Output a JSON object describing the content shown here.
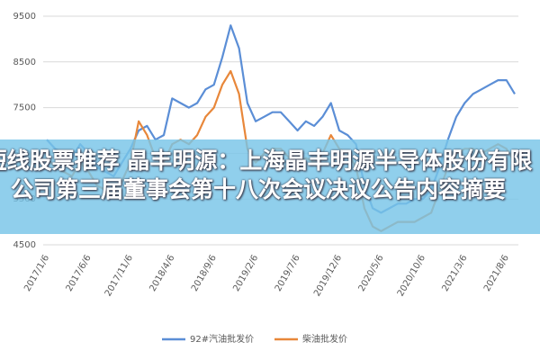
{
  "chart_data": {
    "type": "line",
    "categories": [
      "2017/1/6",
      null,
      null,
      null,
      null,
      "2017/6/6",
      null,
      null,
      null,
      null,
      "2017/11/6",
      null,
      null,
      null,
      null,
      "2018/4/6",
      null,
      null,
      null,
      null,
      "2018/9/6",
      null,
      null,
      null,
      null,
      "2019/2/6",
      null,
      null,
      null,
      null,
      "2019/7/6",
      null,
      null,
      null,
      null,
      "2019/12/6",
      null,
      null,
      null,
      null,
      "2020/5/6",
      null,
      null,
      null,
      null,
      "2020/10/6",
      null,
      null,
      null,
      null,
      "2021/3/6",
      null,
      null,
      null,
      null,
      "2021/8/6",
      null
    ],
    "series": [
      {
        "name": "92#汽油批发价",
        "color": "#5b8ed6",
        "values": [
          6800,
          6600,
          6500,
          6400,
          6700,
          6500,
          6200,
          6100,
          6000,
          6300,
          6600,
          7000,
          7100,
          6800,
          6900,
          7700,
          7600,
          7500,
          7600,
          7900,
          8000,
          8600,
          9300,
          8800,
          7600,
          7200,
          7300,
          7400,
          7400,
          7200,
          7000,
          7200,
          7100,
          7300,
          7600,
          7000,
          6900,
          6700,
          5800,
          5300,
          5200,
          5300,
          5400,
          5400,
          5500,
          5500,
          5700,
          6200,
          6800,
          7300,
          7600,
          7800,
          7900,
          8000,
          8100,
          8100,
          7800
        ]
      },
      {
        "name": "柴油批发价",
        "color": "#e8873a",
        "values": [
          6400,
          6200,
          6100,
          6000,
          6300,
          6100,
          5800,
          5700,
          5600,
          5900,
          6300,
          7200,
          6900,
          6400,
          6300,
          6700,
          6800,
          6700,
          6900,
          7300,
          7500,
          8000,
          8300,
          7800,
          6600,
          6300,
          6500,
          6600,
          6600,
          6400,
          6300,
          6400,
          6300,
          6500,
          6900,
          6600,
          6500,
          6200,
          5300,
          4900,
          4800,
          4900,
          5000,
          5000,
          5000,
          5100,
          5200,
          5700,
          6200,
          6500,
          6600,
          6600,
          6500,
          6600,
          6700,
          6600,
          6300
        ]
      }
    ],
    "ylim": [
      4500,
      9500
    ],
    "yticks": [
      4500,
      5500,
      6500,
      7500,
      8500,
      9500
    ],
    "grid": true,
    "legend": "bottom"
  },
  "banner": {
    "text": "短线股票推荐 晶丰明源：上海晶丰明源半导体股份有限公司第三届董事会第十八次会议决议公告内容摘要"
  }
}
